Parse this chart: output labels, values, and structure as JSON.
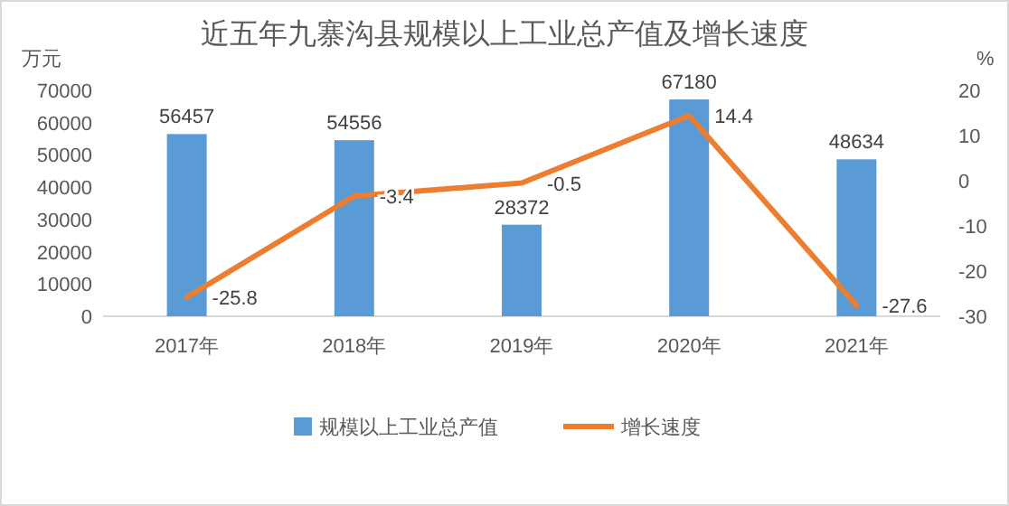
{
  "chart_data": {
    "type": "bar",
    "title": "近五年九寨沟县规模以上工业总产值及增长速度",
    "ylabel": "万元",
    "y2label": "%",
    "categories": [
      "2017年",
      "2018年",
      "2019年",
      "2020年",
      "2021年"
    ],
    "series": [
      {
        "name": "规模以上工业总产值",
        "color": "#5b9bd5",
        "values": [
          56457,
          54556,
          28372,
          67180,
          48634
        ]
      },
      {
        "name": "增长速度",
        "type": "line",
        "color": "#ed7d31",
        "axis": "y2",
        "values": [
          -25.8,
          -3.4,
          -0.5,
          14.4,
          -27.6
        ]
      }
    ],
    "ylim": [
      0,
      70000
    ],
    "yticks": [
      0,
      10000,
      20000,
      30000,
      40000,
      50000,
      60000,
      70000
    ],
    "y2lim": [
      -30,
      20
    ],
    "y2ticks": [
      -30,
      -20,
      -10,
      0,
      10,
      20
    ],
    "data_labels": true,
    "legend": "bottom"
  }
}
